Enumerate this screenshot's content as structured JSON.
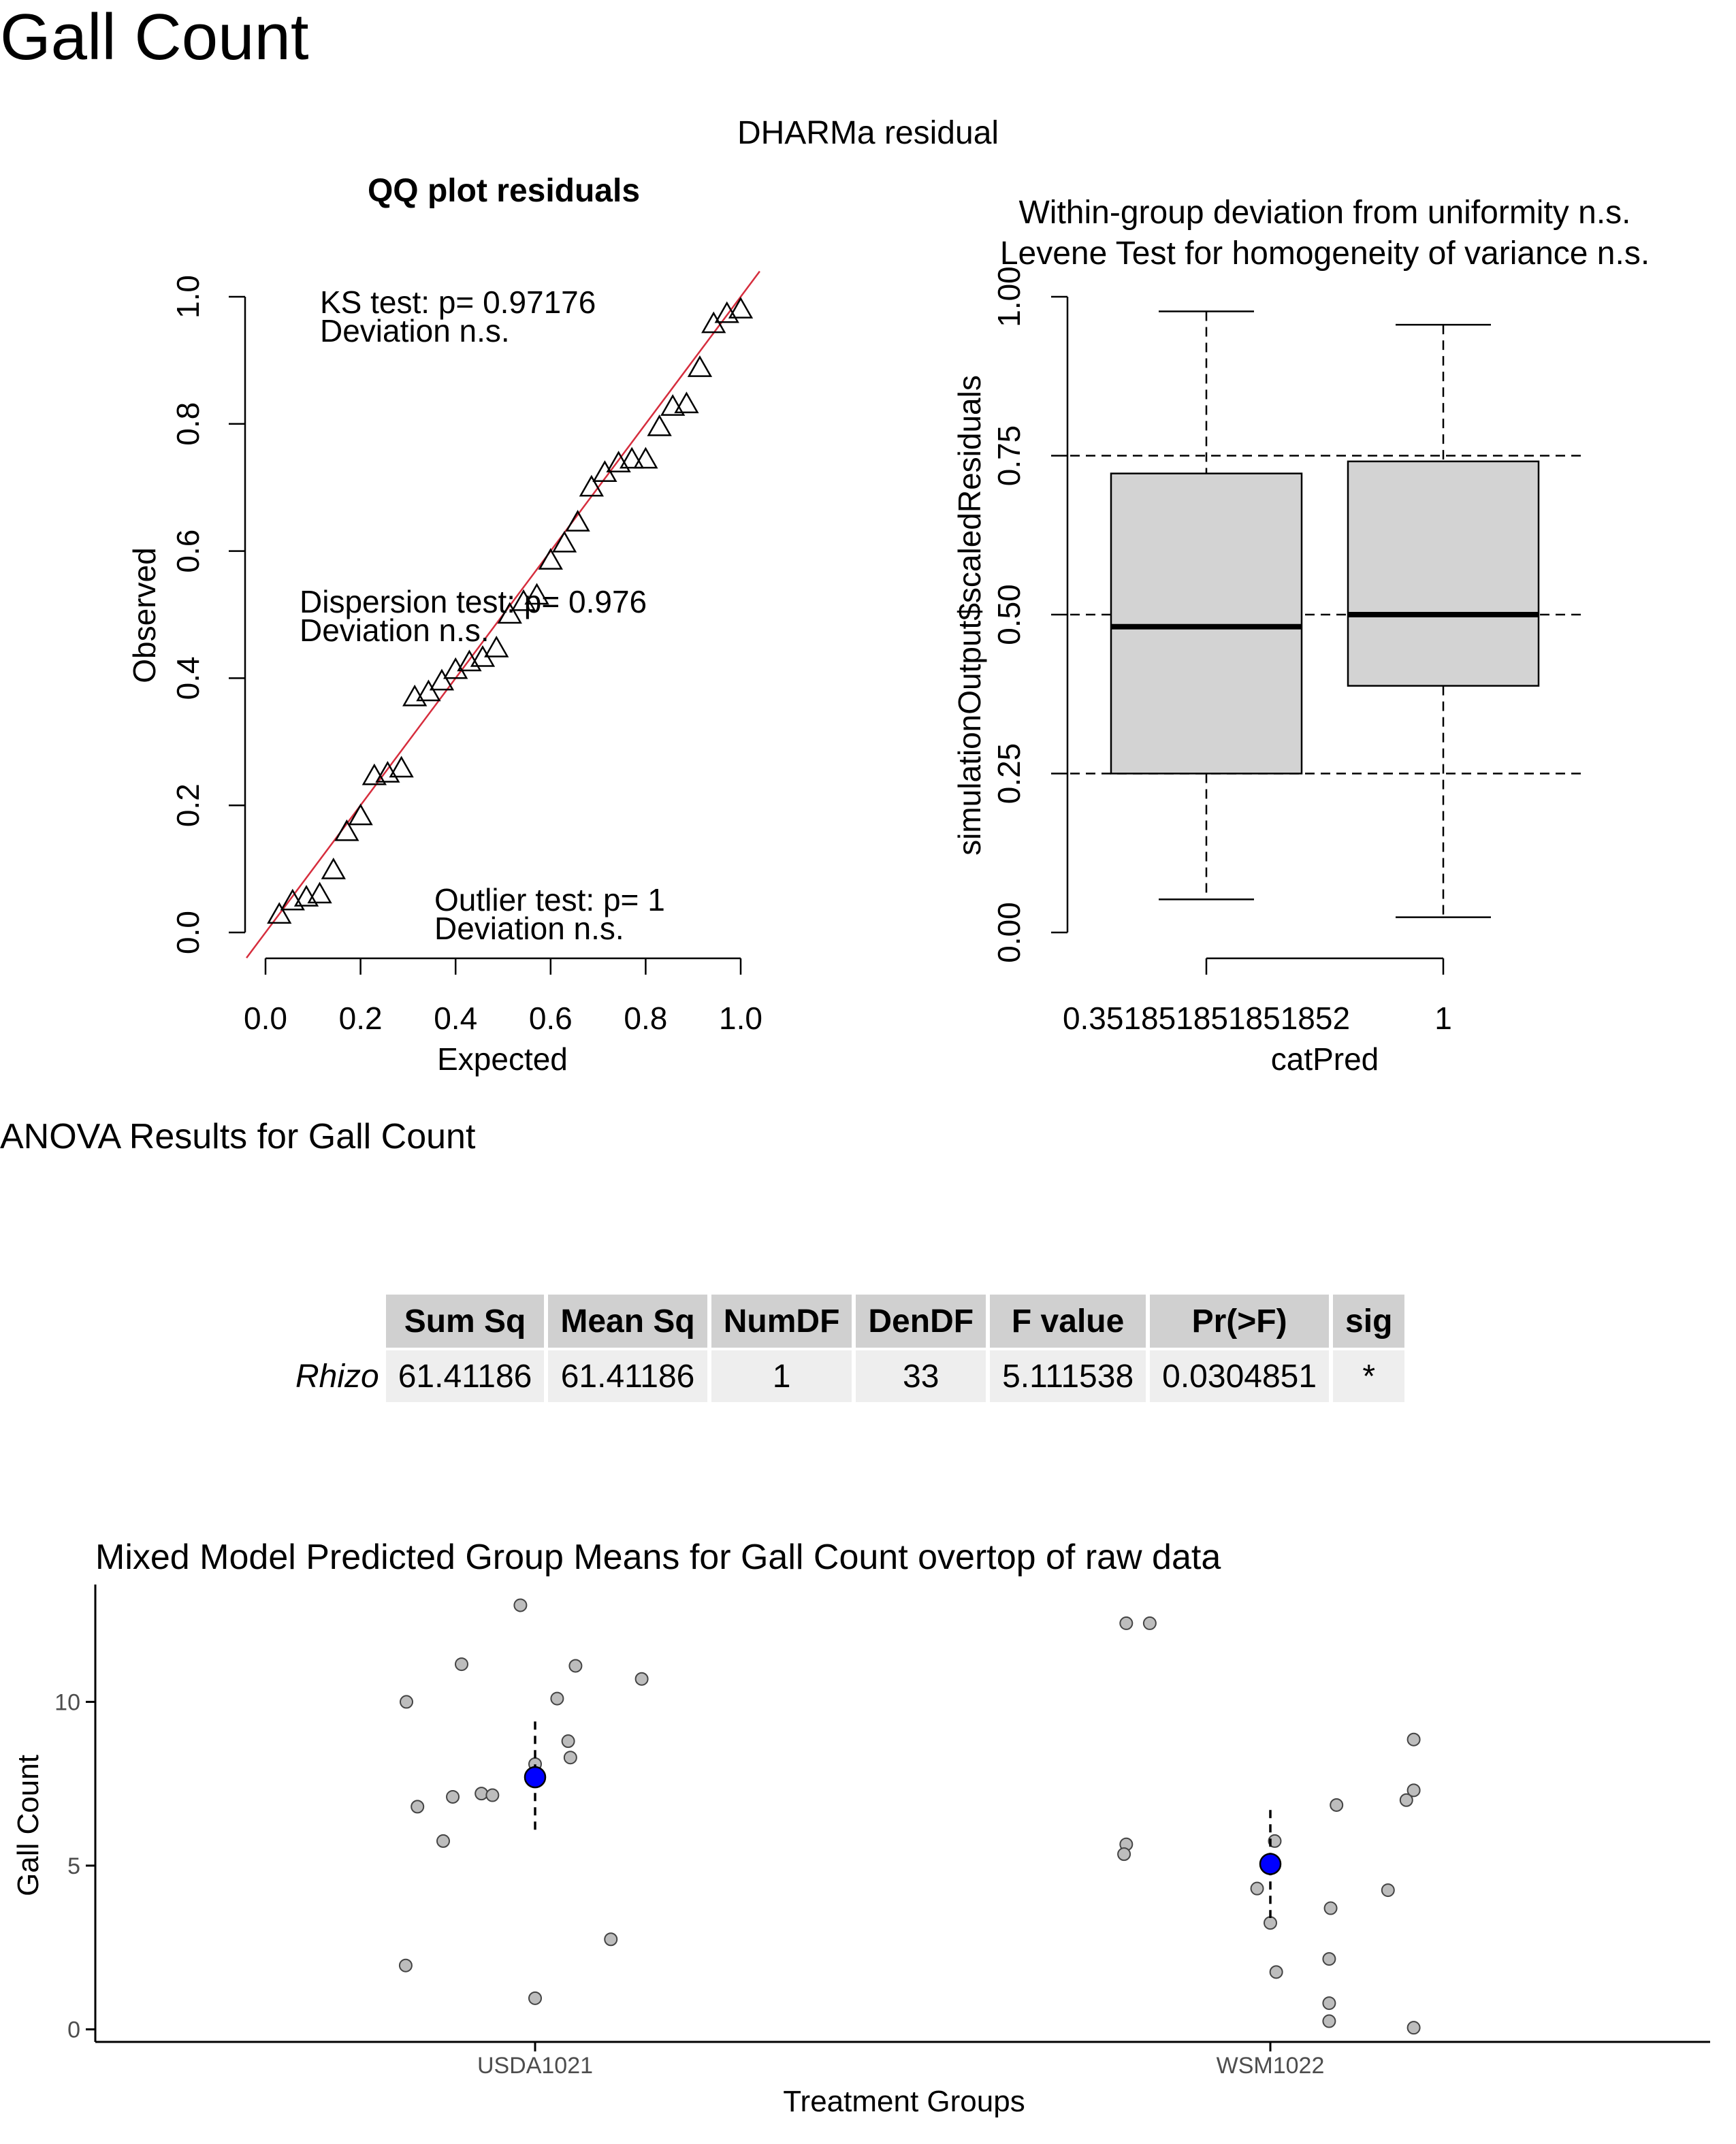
{
  "page": {
    "title": "Gall Count",
    "dharma_title": "DHARMa residual",
    "anova_heading": "ANOVA Results for Gall Count"
  },
  "chart_data": [
    {
      "type": "scatter",
      "title": "QQ plot residuals",
      "xlabel": "Expected",
      "ylabel": "Observed",
      "xlim": [
        0,
        1
      ],
      "ylim": [
        0,
        1
      ],
      "xticks": [
        "0.0",
        "0.2",
        "0.4",
        "0.6",
        "0.8",
        "1.0"
      ],
      "yticks": [
        "0.0",
        "0.2",
        "0.4",
        "0.6",
        "0.8",
        "1.0"
      ],
      "reference_line": "y = x",
      "reference_line_color": "#d62d3d",
      "annotations": {
        "ks_line1": "KS test: p= 0.97176",
        "ks_line2": "Deviation  n.s.",
        "disp_line1": "Dispersion test: p= 0.976",
        "disp_line2": "Deviation  n.s.",
        "out_line1": "Outlier test: p= 1",
        "out_line2": "Deviation  n.s."
      },
      "points": [
        [
          0.029,
          0.028
        ],
        [
          0.057,
          0.049
        ],
        [
          0.086,
          0.055
        ],
        [
          0.114,
          0.06
        ],
        [
          0.143,
          0.098
        ],
        [
          0.171,
          0.158
        ],
        [
          0.2,
          0.183
        ],
        [
          0.229,
          0.246
        ],
        [
          0.257,
          0.25
        ],
        [
          0.286,
          0.258
        ],
        [
          0.314,
          0.37
        ],
        [
          0.343,
          0.378
        ],
        [
          0.371,
          0.395
        ],
        [
          0.4,
          0.413
        ],
        [
          0.429,
          0.425
        ],
        [
          0.457,
          0.432
        ],
        [
          0.486,
          0.447
        ],
        [
          0.514,
          0.5
        ],
        [
          0.543,
          0.52
        ],
        [
          0.571,
          0.53
        ],
        [
          0.6,
          0.585
        ],
        [
          0.629,
          0.612
        ],
        [
          0.657,
          0.645
        ],
        [
          0.686,
          0.7
        ],
        [
          0.714,
          0.723
        ],
        [
          0.743,
          0.738
        ],
        [
          0.771,
          0.744
        ],
        [
          0.8,
          0.744
        ],
        [
          0.829,
          0.795
        ],
        [
          0.857,
          0.827
        ],
        [
          0.886,
          0.831
        ],
        [
          0.914,
          0.888
        ],
        [
          0.943,
          0.957
        ],
        [
          0.971,
          0.973
        ],
        [
          1.0,
          0.98
        ]
      ]
    },
    {
      "type": "boxplot",
      "title_line1": "Within-group deviation from uniformity n.s.",
      "title_line2": "Levene Test for homogeneity of variance n.s.",
      "xlabel": "catPred",
      "ylabel": "simulationOutput$scaledResiduals",
      "ylim": [
        0,
        1
      ],
      "yticks": [
        "0.00",
        "0.25",
        "0.50",
        "0.75",
        "1.00"
      ],
      "reference_lines": [
        0.25,
        0.5,
        0.75
      ],
      "box_fill": "#d3d3d3",
      "groups": [
        {
          "label": "0.351851851851852",
          "min": 0.052,
          "q1": 0.25,
          "median": 0.481,
          "q3": 0.722,
          "max": 0.977
        },
        {
          "label": "1",
          "min": 0.024,
          "q1": 0.388,
          "median": 0.5,
          "q3": 0.741,
          "max": 0.956
        }
      ]
    },
    {
      "type": "table",
      "row_header": "",
      "columns": [
        "Sum Sq",
        "Mean Sq",
        "NumDF",
        "DenDF",
        "F value",
        "Pr(>F)",
        "sig"
      ],
      "rows": [
        {
          "name": "Rhizo",
          "values": [
            "61.41186",
            "61.41186",
            "1",
            "33",
            "5.111538",
            "0.0304851",
            "*"
          ]
        }
      ]
    },
    {
      "type": "scatter",
      "title": "Mixed Model Predicted Group Means for Gall Count overtop of raw data",
      "xlabel": "Treatment Groups",
      "ylabel": "Gall Count",
      "categories": [
        "USDA1021",
        "WSM1022"
      ],
      "ylim": [
        -0.3,
        13.5
      ],
      "yticks": [
        0,
        5,
        10
      ],
      "raw_point_fill": "#bdbdbd",
      "mean_point_fill": "#0000ff",
      "means": [
        {
          "group": "USDA1021",
          "mean": 7.7,
          "lower": 6.0,
          "upper": 9.4
        },
        {
          "group": "WSM1022",
          "mean": 5.05,
          "lower": 3.4,
          "upper": 6.7
        }
      ],
      "raw_points": [
        {
          "group": "USDA1021",
          "jitter": -0.175,
          "value": 10.0
        },
        {
          "group": "USDA1021",
          "jitter": -0.16,
          "value": 6.8
        },
        {
          "group": "USDA1021",
          "jitter": -0.125,
          "value": 5.75
        },
        {
          "group": "USDA1021",
          "jitter": -0.112,
          "value": 7.1
        },
        {
          "group": "USDA1021",
          "jitter": -0.1,
          "value": 11.15
        },
        {
          "group": "USDA1021",
          "jitter": -0.073,
          "value": 7.2
        },
        {
          "group": "USDA1021",
          "jitter": -0.058,
          "value": 7.15
        },
        {
          "group": "USDA1021",
          "jitter": -0.02,
          "value": 12.95
        },
        {
          "group": "USDA1021",
          "jitter": 0.0,
          "value": 8.1
        },
        {
          "group": "USDA1021",
          "jitter": 0.0,
          "value": 0.95
        },
        {
          "group": "USDA1021",
          "jitter": 0.03,
          "value": 10.1
        },
        {
          "group": "USDA1021",
          "jitter": 0.045,
          "value": 8.8
        },
        {
          "group": "USDA1021",
          "jitter": 0.048,
          "value": 8.3
        },
        {
          "group": "USDA1021",
          "jitter": 0.055,
          "value": 11.1
        },
        {
          "group": "USDA1021",
          "jitter": 0.103,
          "value": 2.75
        },
        {
          "group": "USDA1021",
          "jitter": 0.145,
          "value": 10.7
        },
        {
          "group": "USDA1021",
          "jitter": -0.176,
          "value": 1.95
        },
        {
          "group": "WSM1022",
          "jitter": -0.196,
          "value": 12.4
        },
        {
          "group": "WSM1022",
          "jitter": -0.164,
          "value": 12.4
        },
        {
          "group": "WSM1022",
          "jitter": -0.196,
          "value": 5.65
        },
        {
          "group": "WSM1022",
          "jitter": -0.199,
          "value": 5.35
        },
        {
          "group": "WSM1022",
          "jitter": -0.018,
          "value": 4.3
        },
        {
          "group": "WSM1022",
          "jitter": 0.0,
          "value": 3.25
        },
        {
          "group": "WSM1022",
          "jitter": 0.006,
          "value": 5.75
        },
        {
          "group": "WSM1022",
          "jitter": 0.008,
          "value": 1.75
        },
        {
          "group": "WSM1022",
          "jitter": 0.08,
          "value": 2.15
        },
        {
          "group": "WSM1022",
          "jitter": 0.08,
          "value": 0.8
        },
        {
          "group": "WSM1022",
          "jitter": 0.08,
          "value": 0.25
        },
        {
          "group": "WSM1022",
          "jitter": 0.082,
          "value": 3.7
        },
        {
          "group": "WSM1022",
          "jitter": 0.09,
          "value": 6.85
        },
        {
          "group": "WSM1022",
          "jitter": 0.16,
          "value": 4.25
        },
        {
          "group": "WSM1022",
          "jitter": 0.185,
          "value": 7.0
        },
        {
          "group": "WSM1022",
          "jitter": 0.195,
          "value": 7.3
        },
        {
          "group": "WSM1022",
          "jitter": 0.195,
          "value": 8.85
        },
        {
          "group": "WSM1022",
          "jitter": 0.195,
          "value": 0.05
        }
      ]
    }
  ]
}
